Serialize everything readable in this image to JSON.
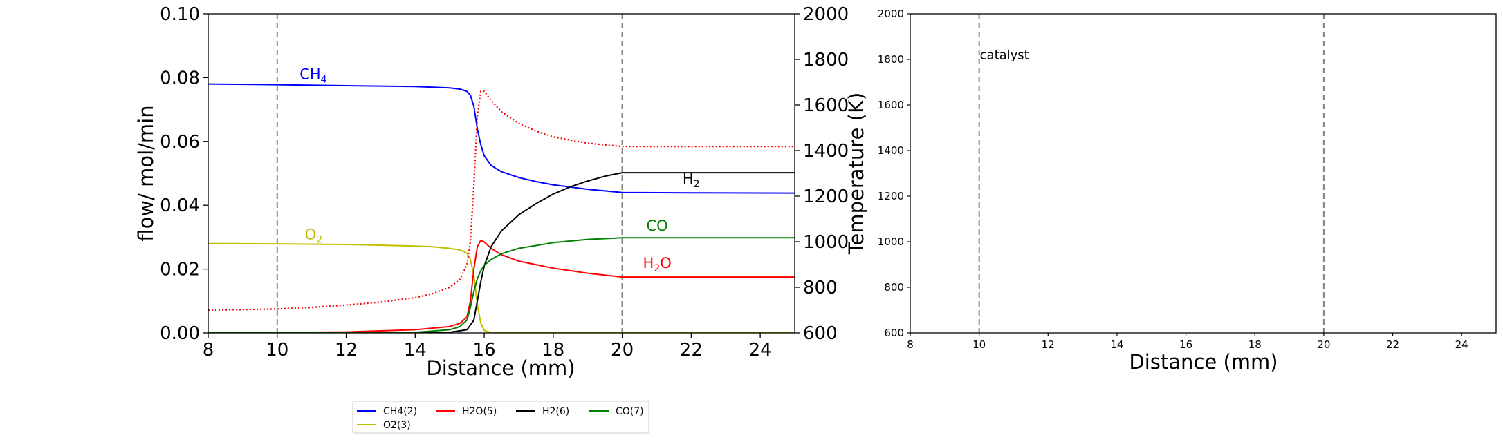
{
  "chart_data": [
    {
      "type": "line",
      "xlabel": "Distance (mm)",
      "ylabel": "flow/ mol/min",
      "y2label": "Temperature (K)",
      "xlim": [
        8,
        25
      ],
      "ylim": [
        0,
        0.1
      ],
      "y2lim": [
        600,
        2000
      ],
      "xticks": [
        "8",
        "10",
        "12",
        "14",
        "16",
        "18",
        "20",
        "22",
        "24"
      ],
      "yticks": [
        "0.00",
        "0.02",
        "0.04",
        "0.06",
        "0.08",
        "0.10"
      ],
      "y2ticks": [
        "600",
        "800",
        "1000",
        "1200",
        "1400",
        "1600",
        "1800",
        "2000"
      ],
      "vlines": [
        10,
        20
      ],
      "grid": false,
      "series": [
        {
          "name": "CH4(2)",
          "color": "#0000ff",
          "axis": "left",
          "style": "solid",
          "x": [
            8,
            10,
            12,
            14,
            15,
            15.3,
            15.5,
            15.6,
            15.7,
            15.8,
            15.9,
            16,
            16.2,
            16.5,
            17,
            17.5,
            18,
            19,
            20,
            22,
            25
          ],
          "y": [
            0.078,
            0.0778,
            0.0775,
            0.0772,
            0.0768,
            0.0764,
            0.0757,
            0.0745,
            0.071,
            0.064,
            0.059,
            0.0555,
            0.0525,
            0.0505,
            0.0487,
            0.0474,
            0.0464,
            0.045,
            0.044,
            0.0439,
            0.0438
          ]
        },
        {
          "name": "O2(3)",
          "color": "#bfbf00",
          "axis": "left",
          "style": "solid",
          "x": [
            8,
            10,
            12,
            13,
            14,
            14.5,
            15,
            15.3,
            15.5,
            15.6,
            15.7,
            15.8,
            15.9,
            16,
            16.2,
            17,
            20,
            25
          ],
          "y": [
            0.028,
            0.0279,
            0.0277,
            0.0275,
            0.0272,
            0.027,
            0.0265,
            0.026,
            0.025,
            0.023,
            0.018,
            0.009,
            0.003,
            0.0008,
            0.0001,
            0,
            0,
            0
          ]
        },
        {
          "name": "H2O(5)",
          "color": "#ff0000",
          "axis": "left",
          "style": "solid",
          "x": [
            8,
            12,
            14,
            15,
            15.3,
            15.5,
            15.6,
            15.7,
            15.8,
            15.9,
            16,
            16.2,
            16.5,
            17,
            18,
            19,
            20,
            25
          ],
          "y": [
            0,
            0.0003,
            0.001,
            0.002,
            0.003,
            0.005,
            0.01,
            0.02,
            0.027,
            0.029,
            0.0285,
            0.0265,
            0.0245,
            0.0225,
            0.0203,
            0.0187,
            0.0175,
            0.0175
          ]
        },
        {
          "name": "H2(6)",
          "color": "#000000",
          "axis": "left",
          "style": "solid",
          "x": [
            8,
            14,
            15,
            15.5,
            15.7,
            15.8,
            15.9,
            16,
            16.2,
            16.5,
            17,
            17.5,
            18,
            18.5,
            19,
            19.5,
            20,
            25
          ],
          "y": [
            0,
            0,
            0.0002,
            0.001,
            0.004,
            0.01,
            0.016,
            0.021,
            0.027,
            0.032,
            0.037,
            0.0405,
            0.0435,
            0.0458,
            0.0476,
            0.0491,
            0.0502,
            0.0502
          ]
        },
        {
          "name": "CO(7)",
          "color": "#008000",
          "axis": "left",
          "style": "solid",
          "x": [
            8,
            14,
            15,
            15.3,
            15.5,
            15.6,
            15.7,
            15.8,
            15.9,
            16,
            16.2,
            16.5,
            17,
            18,
            19,
            20,
            25
          ],
          "y": [
            0,
            0.0002,
            0.001,
            0.002,
            0.004,
            0.008,
            0.013,
            0.017,
            0.0195,
            0.0212,
            0.023,
            0.0248,
            0.0265,
            0.0283,
            0.0293,
            0.0298,
            0.0298
          ]
        },
        {
          "name": "Temperature",
          "color": "#ff0000",
          "axis": "right",
          "style": "dotted",
          "x": [
            8,
            10,
            11,
            12,
            13,
            14,
            14.5,
            15,
            15.3,
            15.5,
            15.6,
            15.7,
            15.8,
            15.9,
            16,
            16.2,
            16.5,
            17,
            17.5,
            18,
            19,
            20,
            25
          ],
          "y": [
            700,
            705,
            712,
            722,
            735,
            755,
            772,
            800,
            835,
            900,
            1000,
            1250,
            1550,
            1660,
            1660,
            1620,
            1570,
            1520,
            1485,
            1460,
            1432,
            1418,
            1418
          ]
        }
      ],
      "annotations": [
        {
          "text": "CH4",
          "base": "CH",
          "sub": "4",
          "x": 10.65,
          "y": 0.0795,
          "color": "#0000ff"
        },
        {
          "text": "O2",
          "base": "O",
          "sub": "2",
          "x": 10.8,
          "y": 0.0293,
          "color": "#bfbf00"
        },
        {
          "text": "H2",
          "base": "H",
          "sub": "2",
          "x": 21.75,
          "y": 0.0467,
          "color": "#000000"
        },
        {
          "text": "CO",
          "base": "CO",
          "sub": "",
          "x": 20.7,
          "y": 0.032,
          "color": "#008000"
        },
        {
          "text": "H2O",
          "base": "H",
          "sub": "2",
          "tail": "O",
          "x": 20.6,
          "y": 0.0203,
          "color": "#ff0000"
        }
      ],
      "legend": {
        "placement": "below",
        "entries": [
          "CH4(2)",
          "H2O(5)",
          "H2(6)",
          "CO(7)",
          "O2(3)"
        ]
      }
    },
    {
      "type": "line",
      "xlabel": "Distance (mm)",
      "ylabel": "",
      "xlim": [
        8,
        25
      ],
      "ylim": [
        600,
        2000
      ],
      "xticks": [
        "8",
        "10",
        "12",
        "14",
        "16",
        "18",
        "20",
        "22",
        "24"
      ],
      "yticks": [
        "600",
        "800",
        "1000",
        "1200",
        "1400",
        "1600",
        "1800",
        "2000"
      ],
      "vlines": [
        10,
        20
      ],
      "grid": false,
      "series": [],
      "annotations": [
        {
          "text": "catalyst",
          "x": 10.0,
          "y": 1820,
          "color": "#000000"
        }
      ]
    }
  ]
}
